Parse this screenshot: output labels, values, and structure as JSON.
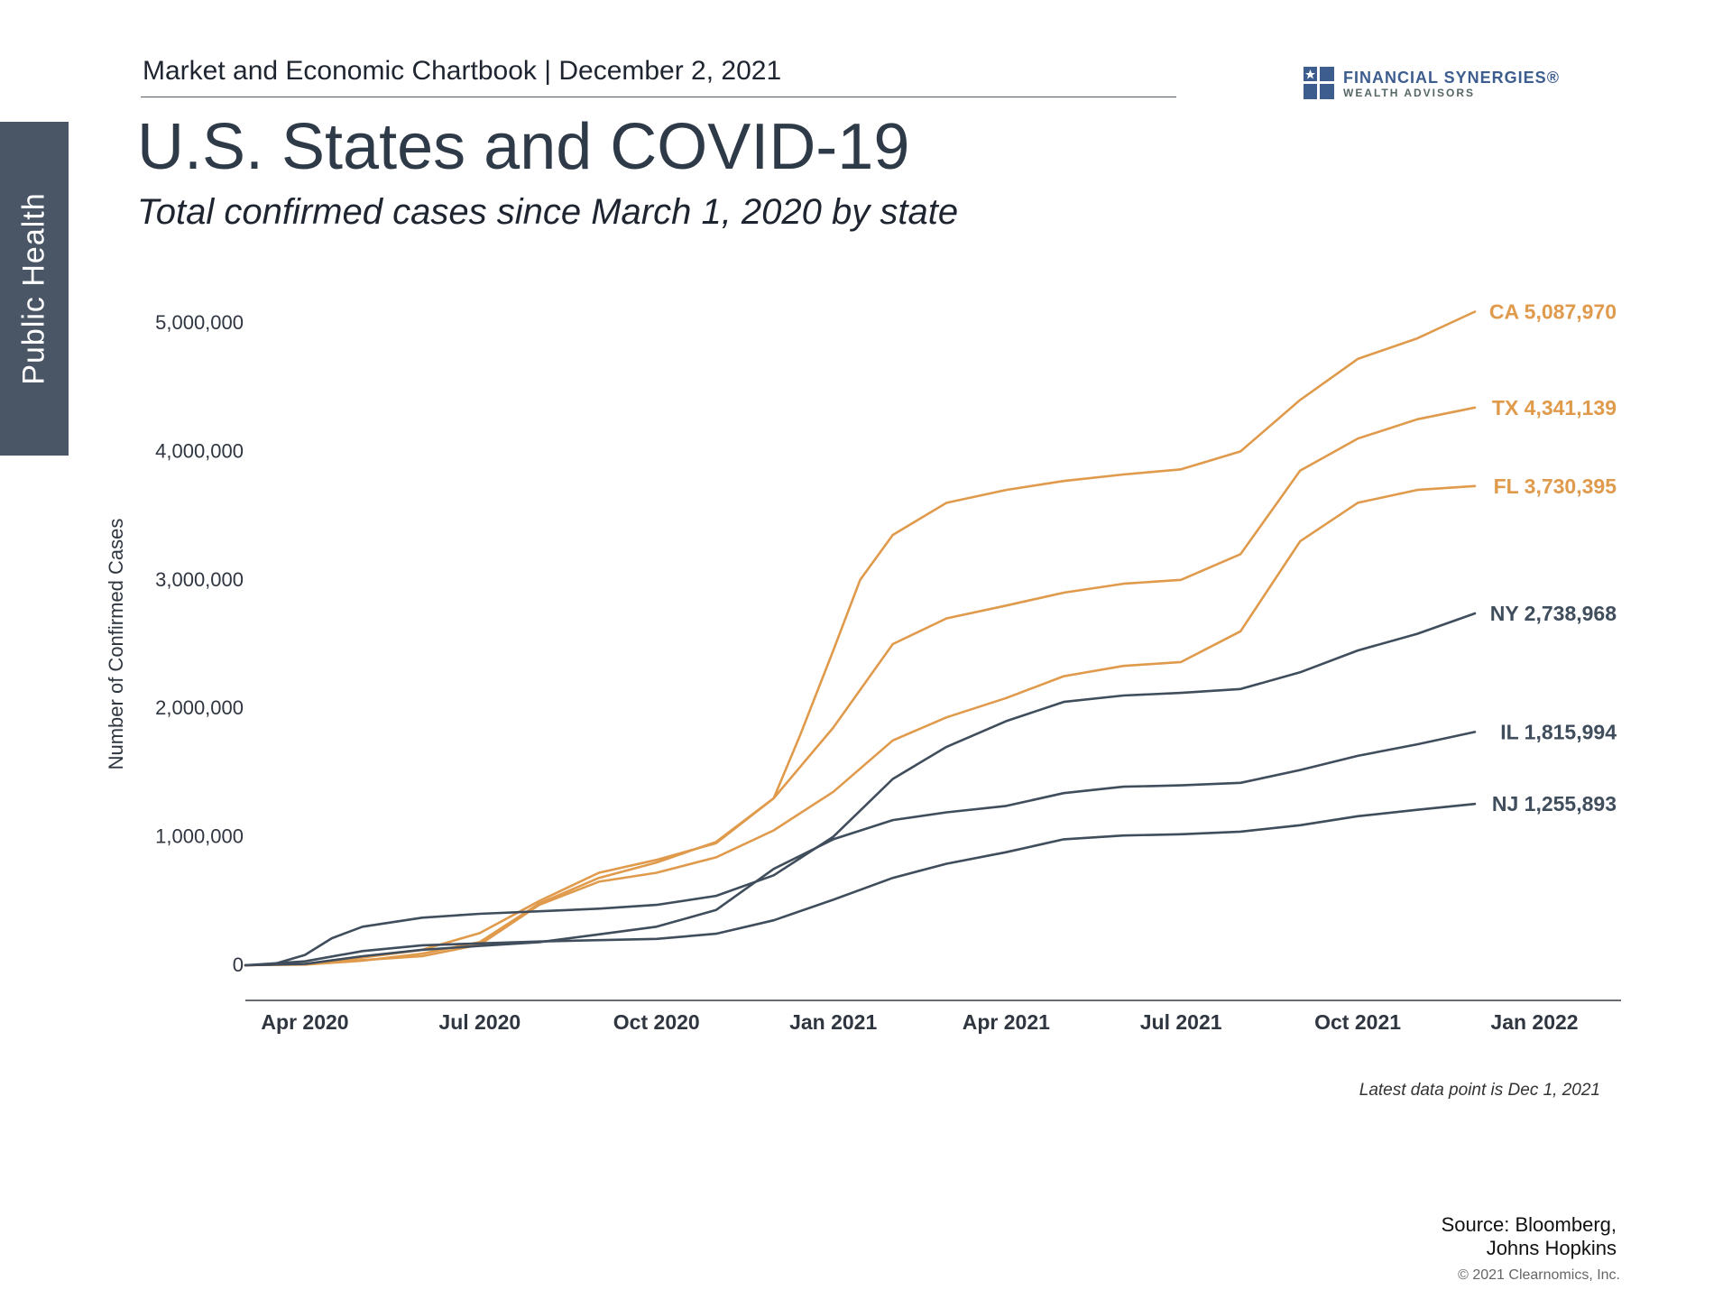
{
  "side_tab": {
    "label": "Public Health"
  },
  "header": {
    "chartbook": "Market and Economic Chartbook | December 2, 2021"
  },
  "logo": {
    "name": "FINANCIAL SYNERGIES®",
    "subtitle": "WEALTH ADVISORS"
  },
  "title": "U.S. States and COVID-19",
  "subtitle": "Total confirmed cases since March 1, 2020 by state",
  "note": "Latest data point is Dec 1, 2021",
  "source": {
    "line1": "Source: Bloomberg,",
    "line2": "Johns Hopkins"
  },
  "copyright": "© 2021 Clearnomics, Inc.",
  "colors": {
    "orange": "#e09a4c",
    "slate": "#3f4d5c",
    "axis": "#333a44",
    "tab": "#4a5566"
  },
  "chart_data": {
    "type": "line",
    "title": "",
    "xlabel": "",
    "ylabel": "Number of Confirmed Cases",
    "ylim": [
      0,
      5000000
    ],
    "y_ticks": [
      0,
      1000000,
      2000000,
      3000000,
      4000000,
      5000000
    ],
    "y_tick_labels": [
      "0",
      "1,000,000",
      "2,000,000",
      "3,000,000",
      "4,000,000",
      "5,000,000"
    ],
    "x_range": [
      "2020-03-01",
      "2021-12-01"
    ],
    "x_ticks": [
      "2020-04-01",
      "2020-07-01",
      "2020-10-01",
      "2021-01-01",
      "2021-04-01",
      "2021-07-01",
      "2021-10-01",
      "2022-01-01"
    ],
    "x_tick_labels": [
      "Apr 2020",
      "Jul 2020",
      "Oct 2020",
      "Jan 2021",
      "Apr 2021",
      "Jul 2021",
      "Oct 2021",
      "Jan 2022"
    ],
    "grid": false,
    "series": [
      {
        "name": "CA",
        "end_label": "CA 5,087,970",
        "color": "orange",
        "points": [
          [
            "2020-03-01",
            0
          ],
          [
            "2020-04-01",
            10000
          ],
          [
            "2020-05-01",
            60000
          ],
          [
            "2020-06-01",
            120000
          ],
          [
            "2020-07-01",
            250000
          ],
          [
            "2020-08-01",
            500000
          ],
          [
            "2020-09-01",
            720000
          ],
          [
            "2020-10-01",
            820000
          ],
          [
            "2020-11-01",
            950000
          ],
          [
            "2020-12-01",
            1300000
          ],
          [
            "2020-12-15",
            1800000
          ],
          [
            "2021-01-01",
            2450000
          ],
          [
            "2021-01-15",
            3000000
          ],
          [
            "2021-02-01",
            3350000
          ],
          [
            "2021-03-01",
            3600000
          ],
          [
            "2021-04-01",
            3700000
          ],
          [
            "2021-05-01",
            3770000
          ],
          [
            "2021-06-01",
            3820000
          ],
          [
            "2021-07-01",
            3860000
          ],
          [
            "2021-08-01",
            4000000
          ],
          [
            "2021-09-01",
            4400000
          ],
          [
            "2021-10-01",
            4720000
          ],
          [
            "2021-11-01",
            4880000
          ],
          [
            "2021-12-01",
            5087970
          ]
        ]
      },
      {
        "name": "TX",
        "end_label": "TX 4,341,139",
        "color": "orange",
        "points": [
          [
            "2020-03-01",
            0
          ],
          [
            "2020-04-01",
            5000
          ],
          [
            "2020-05-01",
            35000
          ],
          [
            "2020-06-01",
            90000
          ],
          [
            "2020-07-01",
            180000
          ],
          [
            "2020-08-01",
            480000
          ],
          [
            "2020-09-01",
            680000
          ],
          [
            "2020-10-01",
            800000
          ],
          [
            "2020-11-01",
            960000
          ],
          [
            "2020-12-01",
            1300000
          ],
          [
            "2021-01-01",
            1850000
          ],
          [
            "2021-02-01",
            2500000
          ],
          [
            "2021-03-01",
            2700000
          ],
          [
            "2021-04-01",
            2800000
          ],
          [
            "2021-05-01",
            2900000
          ],
          [
            "2021-06-01",
            2970000
          ],
          [
            "2021-07-01",
            3000000
          ],
          [
            "2021-08-01",
            3200000
          ],
          [
            "2021-09-01",
            3850000
          ],
          [
            "2021-10-01",
            4100000
          ],
          [
            "2021-11-01",
            4250000
          ],
          [
            "2021-12-01",
            4341139
          ]
        ]
      },
      {
        "name": "FL",
        "end_label": "FL 3,730,395",
        "color": "orange",
        "points": [
          [
            "2020-03-01",
            0
          ],
          [
            "2020-04-01",
            10000
          ],
          [
            "2020-05-01",
            40000
          ],
          [
            "2020-06-01",
            70000
          ],
          [
            "2020-07-01",
            160000
          ],
          [
            "2020-08-01",
            470000
          ],
          [
            "2020-09-01",
            650000
          ],
          [
            "2020-10-01",
            720000
          ],
          [
            "2020-11-01",
            840000
          ],
          [
            "2020-12-01",
            1050000
          ],
          [
            "2021-01-01",
            1350000
          ],
          [
            "2021-02-01",
            1750000
          ],
          [
            "2021-03-01",
            1930000
          ],
          [
            "2021-04-01",
            2080000
          ],
          [
            "2021-05-01",
            2250000
          ],
          [
            "2021-06-01",
            2330000
          ],
          [
            "2021-07-01",
            2360000
          ],
          [
            "2021-08-01",
            2600000
          ],
          [
            "2021-09-01",
            3300000
          ],
          [
            "2021-10-01",
            3600000
          ],
          [
            "2021-11-01",
            3700000
          ],
          [
            "2021-12-01",
            3730395
          ]
        ]
      },
      {
        "name": "NY",
        "end_label": "NY 2,738,968",
        "color": "slate",
        "points": [
          [
            "2020-03-01",
            0
          ],
          [
            "2020-03-15",
            5000
          ],
          [
            "2020-04-01",
            80000
          ],
          [
            "2020-04-15",
            210000
          ],
          [
            "2020-05-01",
            300000
          ],
          [
            "2020-06-01",
            370000
          ],
          [
            "2020-07-01",
            400000
          ],
          [
            "2020-08-01",
            420000
          ],
          [
            "2020-09-01",
            440000
          ],
          [
            "2020-10-01",
            470000
          ],
          [
            "2020-11-01",
            540000
          ],
          [
            "2020-12-01",
            700000
          ],
          [
            "2021-01-01",
            1000000
          ],
          [
            "2021-02-01",
            1450000
          ],
          [
            "2021-03-01",
            1700000
          ],
          [
            "2021-04-01",
            1900000
          ],
          [
            "2021-05-01",
            2050000
          ],
          [
            "2021-06-01",
            2100000
          ],
          [
            "2021-07-01",
            2120000
          ],
          [
            "2021-08-01",
            2150000
          ],
          [
            "2021-09-01",
            2280000
          ],
          [
            "2021-10-01",
            2450000
          ],
          [
            "2021-11-01",
            2580000
          ],
          [
            "2021-12-01",
            2738968
          ]
        ]
      },
      {
        "name": "IL",
        "end_label": "IL 1,815,994",
        "color": "slate",
        "points": [
          [
            "2020-03-01",
            0
          ],
          [
            "2020-04-01",
            10000
          ],
          [
            "2020-05-01",
            70000
          ],
          [
            "2020-06-01",
            120000
          ],
          [
            "2020-07-01",
            150000
          ],
          [
            "2020-08-01",
            180000
          ],
          [
            "2020-09-01",
            240000
          ],
          [
            "2020-10-01",
            300000
          ],
          [
            "2020-11-01",
            430000
          ],
          [
            "2020-12-01",
            750000
          ],
          [
            "2021-01-01",
            980000
          ],
          [
            "2021-02-01",
            1130000
          ],
          [
            "2021-03-01",
            1190000
          ],
          [
            "2021-04-01",
            1240000
          ],
          [
            "2021-05-01",
            1340000
          ],
          [
            "2021-06-01",
            1390000
          ],
          [
            "2021-07-01",
            1400000
          ],
          [
            "2021-08-01",
            1420000
          ],
          [
            "2021-09-01",
            1520000
          ],
          [
            "2021-10-01",
            1630000
          ],
          [
            "2021-11-01",
            1720000
          ],
          [
            "2021-12-01",
            1815994
          ]
        ]
      },
      {
        "name": "NJ",
        "end_label": "NJ 1,255,893",
        "color": "slate",
        "points": [
          [
            "2020-03-01",
            0
          ],
          [
            "2020-04-01",
            30000
          ],
          [
            "2020-05-01",
            110000
          ],
          [
            "2020-06-01",
            155000
          ],
          [
            "2020-07-01",
            170000
          ],
          [
            "2020-08-01",
            185000
          ],
          [
            "2020-09-01",
            195000
          ],
          [
            "2020-10-01",
            205000
          ],
          [
            "2020-11-01",
            245000
          ],
          [
            "2020-12-01",
            350000
          ],
          [
            "2021-01-01",
            510000
          ],
          [
            "2021-02-01",
            680000
          ],
          [
            "2021-03-01",
            790000
          ],
          [
            "2021-04-01",
            880000
          ],
          [
            "2021-05-01",
            980000
          ],
          [
            "2021-06-01",
            1010000
          ],
          [
            "2021-07-01",
            1020000
          ],
          [
            "2021-08-01",
            1040000
          ],
          [
            "2021-09-01",
            1090000
          ],
          [
            "2021-10-01",
            1160000
          ],
          [
            "2021-11-01",
            1210000
          ],
          [
            "2021-12-01",
            1255893
          ]
        ]
      }
    ]
  }
}
